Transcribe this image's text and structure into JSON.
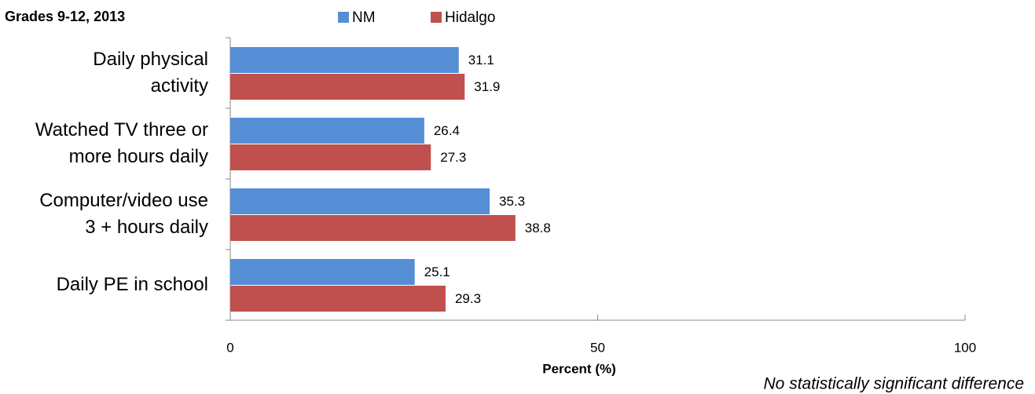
{
  "chart_data": {
    "type": "bar",
    "orientation": "horizontal",
    "title": "Grades 9-12, 2013",
    "x_label": "Percent (%)",
    "annotation": "No statistically significant difference",
    "categories": [
      "Daily physical\nactivity",
      "Watched TV three or\nmore hours daily",
      "Computer/video use\n3 + hours daily",
      "Daily PE in school"
    ],
    "series": [
      {
        "name": "NM",
        "color": "#558ed5",
        "values": [
          31.1,
          26.4,
          35.3,
          25.1
        ]
      },
      {
        "name": "Hidalgo",
        "color": "#c0504d",
        "values": [
          31.9,
          27.3,
          38.8,
          29.3
        ]
      }
    ],
    "xlim": [
      0,
      100
    ],
    "xticks": [
      0,
      50,
      100
    ]
  }
}
